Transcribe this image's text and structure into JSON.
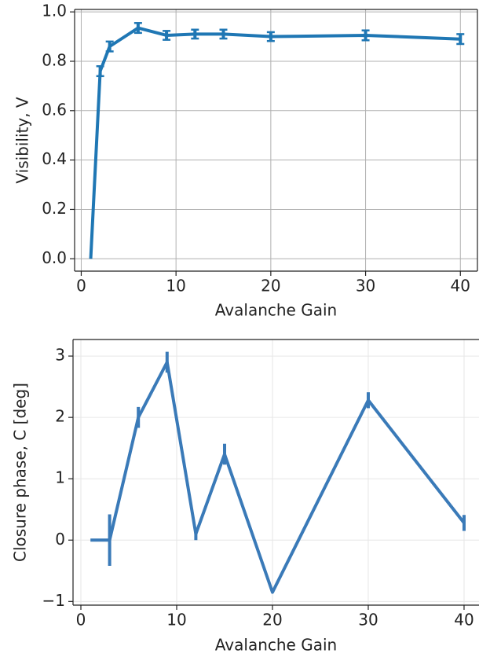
{
  "chart_data": [
    {
      "type": "line",
      "x_label": "Avalanche Gain",
      "y_label": "Visibility, V",
      "x": [
        1,
        2,
        3,
        6,
        9,
        12,
        15,
        20,
        30,
        40
      ],
      "series": [
        {
          "color": "#1f77b4",
          "values": [
            0.0,
            0.76,
            0.86,
            0.935,
            0.905,
            0.91,
            0.91,
            0.9,
            0.905,
            0.89
          ],
          "errors": [
            null,
            0.02,
            0.02,
            0.02,
            0.018,
            0.018,
            0.018,
            0.018,
            0.02,
            0.02
          ]
        }
      ],
      "xlim": [
        -0.7,
        41.8
      ],
      "ylim": [
        -0.05,
        1.01
      ],
      "xticks": [
        0,
        10,
        20,
        30,
        40
      ],
      "yticks": [
        {
          "value": 0,
          "label": "0.0"
        },
        0.2,
        0.4,
        0.6,
        0.8,
        {
          "value": 1,
          "label": "1.0"
        }
      ],
      "grid": true
    },
    {
      "type": "line",
      "x_label": "Avalanche Gain",
      "y_label": "Closure phase, C  [deg]",
      "x": [
        1,
        3,
        6,
        9,
        12,
        15,
        20,
        30,
        40
      ],
      "series": [
        {
          "color": "#3a7ab8",
          "values": [
            0,
            0,
            2.0,
            2.9,
            0.1,
            1.4,
            -0.85,
            2.28,
            0.28
          ],
          "errors": [
            null,
            0.42,
            0.17,
            0.17,
            0.1,
            0.17,
            null,
            0.13,
            0.13
          ]
        }
      ],
      "xlim": [
        -0.82,
        41.56
      ],
      "ylim": [
        -1.06,
        3.27
      ],
      "xticks": [
        0,
        10,
        20,
        30,
        40
      ],
      "yticks": [
        {
          "value": -1,
          "label": "−1"
        },
        0,
        1,
        2,
        3
      ],
      "grid": true
    }
  ]
}
